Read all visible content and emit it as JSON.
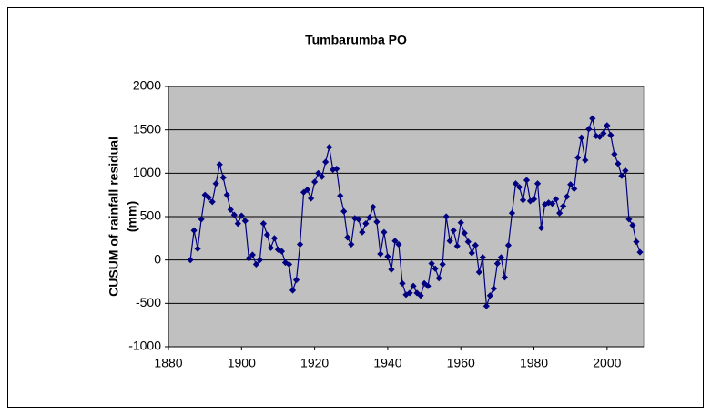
{
  "chart_data": {
    "type": "line",
    "title": "Tumbarumba PO",
    "ylabel": [
      "CUSUM of rainfall residual",
      "(mm)"
    ],
    "x": [
      1886,
      1887,
      1888,
      1889,
      1890,
      1891,
      1892,
      1893,
      1894,
      1895,
      1896,
      1897,
      1898,
      1899,
      1900,
      1901,
      1902,
      1903,
      1904,
      1905,
      1906,
      1907,
      1908,
      1909,
      1910,
      1911,
      1912,
      1913,
      1914,
      1915,
      1916,
      1917,
      1918,
      1919,
      1920,
      1921,
      1922,
      1923,
      1924,
      1925,
      1926,
      1927,
      1928,
      1929,
      1930,
      1931,
      1932,
      1933,
      1934,
      1935,
      1936,
      1937,
      1938,
      1939,
      1940,
      1941,
      1942,
      1943,
      1944,
      1945,
      1946,
      1947,
      1948,
      1949,
      1950,
      1951,
      1952,
      1953,
      1954,
      1955,
      1956,
      1957,
      1958,
      1959,
      1960,
      1961,
      1962,
      1963,
      1964,
      1965,
      1966,
      1967,
      1968,
      1969,
      1970,
      1971,
      1972,
      1973,
      1974,
      1975,
      1976,
      1977,
      1978,
      1979,
      1980,
      1981,
      1982,
      1983,
      1984,
      1985,
      1986,
      1987,
      1988,
      1989,
      1990,
      1991,
      1992,
      1993,
      1994,
      1995,
      1996,
      1997,
      1998,
      1999,
      2000,
      2001,
      2002,
      2003,
      2004,
      2005,
      2006,
      2007,
      2008,
      2009
    ],
    "values": [
      0,
      340,
      130,
      470,
      750,
      720,
      670,
      880,
      1100,
      950,
      750,
      580,
      520,
      420,
      510,
      450,
      20,
      60,
      -50,
      0,
      420,
      290,
      140,
      250,
      120,
      100,
      -30,
      -50,
      -350,
      -230,
      180,
      780,
      810,
      710,
      900,
      1000,
      960,
      1130,
      1300,
      1040,
      1050,
      740,
      560,
      260,
      180,
      480,
      470,
      320,
      420,
      490,
      610,
      440,
      70,
      320,
      40,
      -110,
      220,
      180,
      -270,
      -400,
      -380,
      -300,
      -380,
      -410,
      -270,
      -300,
      -40,
      -100,
      -210,
      -50,
      500,
      220,
      340,
      160,
      430,
      310,
      210,
      80,
      170,
      -140,
      30,
      -530,
      -410,
      -330,
      -40,
      30,
      -200,
      170,
      540,
      880,
      840,
      690,
      920,
      680,
      700,
      880,
      370,
      640,
      660,
      650,
      700,
      540,
      620,
      730,
      870,
      820,
      1180,
      1410,
      1150,
      1510,
      1630,
      1430,
      1420,
      1460,
      1550,
      1440,
      1220,
      1110,
      970,
      1030,
      470,
      400,
      210,
      90
    ],
    "color": "#000080",
    "xlim": [
      1880,
      2010
    ],
    "xticks": [
      1880,
      1900,
      1920,
      1940,
      1960,
      1980,
      2000
    ],
    "ylim": [
      -1000,
      2000
    ],
    "yticks": [
      -1000,
      -500,
      0,
      500,
      1000,
      1500,
      2000
    ],
    "grid": true
  }
}
